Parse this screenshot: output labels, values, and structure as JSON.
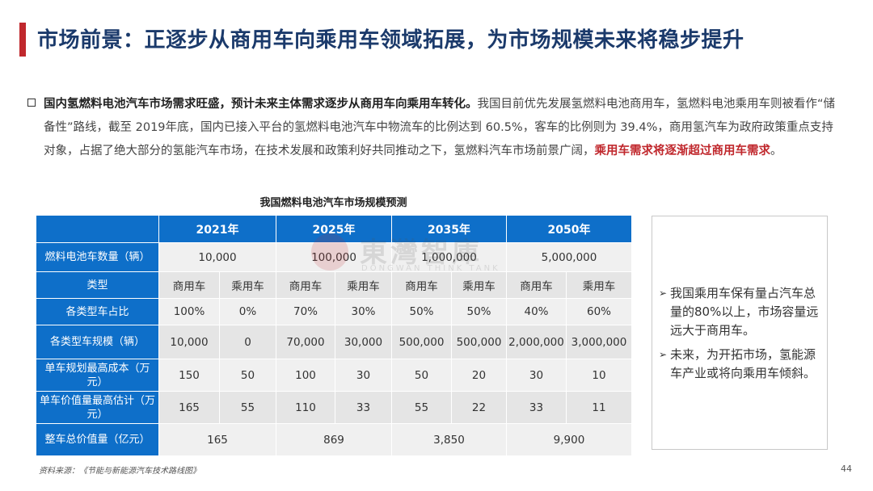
{
  "header": {
    "title": "市场前景：正逐步从商用车向乘用车领域拓展，为市场规模未来将稳步提升"
  },
  "intro": {
    "bold": "国内氢燃料电池汽车市场需求旺盛，预计未来主体需求逐步从商用车向乘用车转化。",
    "normal": "我国目前优先发展氢燃料电池商用车，氢燃料电池乘用车则被看作“储备性”路线，截至 2019年底，国内已接入平台的氢燃料电池汽车中物流车的比例达到 60.5%，客车的比例则为 39.4%，商用氢汽车为政府政策重点支持对象，占据了绝大部分的氢能汽车市场，在技术发展和政策利好共同推动之下，氢燃料汽车市场前景广阔，",
    "red": "乘用车需求将逐渐超过商用车需求",
    "end": "。"
  },
  "table": {
    "title": "我国燃料电池汽车市场规模预测",
    "years": [
      "2021年",
      "2025年",
      "2035年",
      "2050年"
    ],
    "rows": {
      "count": {
        "label": "燃料电池车数量（辆）",
        "values": [
          "10,000",
          "100,000",
          "1,000,000",
          "5,000,000"
        ]
      },
      "type": {
        "label": "类型",
        "values": [
          "商用车",
          "乘用车",
          "商用车",
          "乘用车",
          "商用车",
          "乘用车",
          "商用车",
          "乘用车"
        ]
      },
      "share": {
        "label": "各类型车占比",
        "values": [
          "100%",
          "0%",
          "70%",
          "30%",
          "50%",
          "50%",
          "40%",
          "60%"
        ]
      },
      "scale": {
        "label": "各类型车规模（辆）",
        "values": [
          "10,000",
          "0",
          "70,000",
          "30,000",
          "500,000",
          "500,000",
          "2,000,000",
          "3,000,000"
        ]
      },
      "cost": {
        "label": "单车规划最高成本（万元）",
        "values": [
          "150",
          "50",
          "100",
          "30",
          "50",
          "20",
          "30",
          "10"
        ]
      },
      "price": {
        "label": "单车价值量最高估计（万元）",
        "values": [
          "165",
          "55",
          "110",
          "33",
          "55",
          "22",
          "33",
          "11"
        ]
      },
      "total": {
        "label": "整车总价值量（亿元）",
        "values": [
          "165",
          "869",
          "3,850",
          "9,900"
        ]
      }
    }
  },
  "sidebar": {
    "points": [
      "我国乘用车保有量占汽车总量的80%以上，市场容量远远大于商用车。",
      "未来，为开拓市场，氢能源车产业或将向乘用车倾斜。"
    ]
  },
  "watermark": {
    "text": "東灣智庫",
    "sub": "DONGWAN THINK TANK"
  },
  "footer": {
    "source": "资料来源：《节能与新能源汽车技术路线图》",
    "page": "44"
  }
}
